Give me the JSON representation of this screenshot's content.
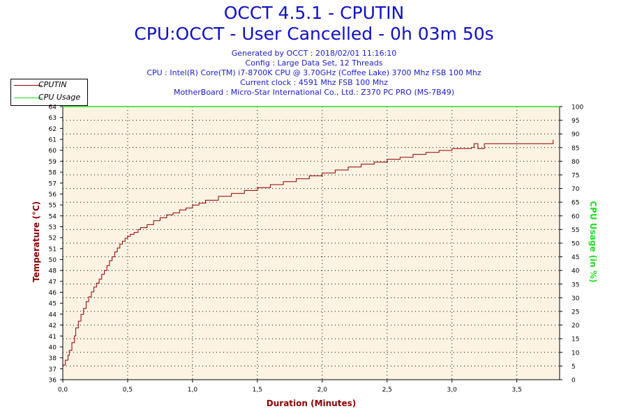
{
  "header": {
    "title": "OCCT 4.5.1 - CPUTIN",
    "subtitle": "CPU:OCCT - User Cancelled - 0h 03m 50s",
    "info_lines": [
      "Generated by OCCT : 2018/02/01 11:16:10",
      "Config : Large Data Set, 12 Threads",
      "CPU : Intel(R) Core(TM) i7-8700K CPU @ 3.70GHz (Coffee Lake) 3700 Mhz FSB 100 Mhz",
      "Current clock : 4591 Mhz FSB 100 Mhz",
      "MotherBoard : Micro-Star International Co., Ltd.: Z370 PC PRO (MS-7B49)"
    ]
  },
  "colors": {
    "title": "#1010c0",
    "cputin": "#8b0000",
    "cpu_usage": "#22dd22",
    "plot_bg": "#fdf3e3"
  },
  "chart_data": {
    "type": "line",
    "title": "OCCT 4.5.1 - CPUTIN",
    "xlabel": "Duration (Minutes)",
    "ylabel": "Temperature (°C)",
    "y2label": "CPU Usage (in %)",
    "xlim": [
      0,
      3.83
    ],
    "ylim": [
      36,
      64
    ],
    "y2lim": [
      0,
      100
    ],
    "xticks": [
      "0,0",
      "0,5",
      "1,0",
      "1,5",
      "2,0",
      "2,5",
      "3,0",
      "3,5"
    ],
    "xtick_values": [
      0,
      0.5,
      1.0,
      1.5,
      2.0,
      2.5,
      3.0,
      3.5
    ],
    "yticks": [
      "36",
      "37",
      "38",
      "40",
      "41",
      "42",
      "44",
      "45",
      "46",
      "47",
      "48",
      "50",
      "51",
      "52",
      "53",
      "54",
      "55",
      "56",
      "57",
      "58",
      "59",
      "60",
      "61",
      "62",
      "63",
      "64"
    ],
    "y2ticks": [
      "0",
      "5",
      "10",
      "15",
      "20",
      "25",
      "30",
      "35",
      "40",
      "45",
      "50",
      "55",
      "60",
      "65",
      "70",
      "75",
      "80",
      "85",
      "90",
      "95",
      "100"
    ],
    "y2tick_values": [
      0,
      5,
      10,
      15,
      20,
      25,
      30,
      35,
      40,
      45,
      50,
      55,
      60,
      65,
      70,
      75,
      80,
      85,
      90,
      95,
      100
    ],
    "grid": true,
    "legend_position": "top-left",
    "series": [
      {
        "name": "CPUTIN",
        "axis": "left",
        "x": [
          0,
          0.02,
          0.04,
          0.05,
          0.07,
          0.09,
          0.1,
          0.12,
          0.14,
          0.16,
          0.18,
          0.2,
          0.22,
          0.24,
          0.26,
          0.28,
          0.3,
          0.32,
          0.34,
          0.36,
          0.38,
          0.4,
          0.42,
          0.44,
          0.46,
          0.48,
          0.5,
          0.52,
          0.55,
          0.58,
          0.6,
          0.65,
          0.7,
          0.75,
          0.8,
          0.85,
          0.9,
          0.95,
          1.0,
          1.05,
          1.1,
          1.2,
          1.3,
          1.4,
          1.5,
          1.6,
          1.7,
          1.8,
          1.9,
          2.0,
          2.1,
          2.2,
          2.3,
          2.4,
          2.5,
          2.6,
          2.7,
          2.8,
          2.9,
          3.0,
          3.1,
          3.15,
          3.17,
          3.2,
          3.22,
          3.25,
          3.3,
          3.4,
          3.5,
          3.6,
          3.7,
          3.75,
          3.78
        ],
        "y": [
          37.5,
          38,
          38.5,
          39,
          39.8,
          40.5,
          41.3,
          42,
          42.7,
          43.3,
          44,
          44.5,
          45,
          45.5,
          45.9,
          46.3,
          46.8,
          47.2,
          47.7,
          48.2,
          48.6,
          49.1,
          49.5,
          49.9,
          50.2,
          50.5,
          50.7,
          50.9,
          51.1,
          51.4,
          51.6,
          51.9,
          52.3,
          52.6,
          52.9,
          53.1,
          53.4,
          53.6,
          53.9,
          54.1,
          54.4,
          54.8,
          55.1,
          55.4,
          55.7,
          56.0,
          56.3,
          56.6,
          56.9,
          57.2,
          57.5,
          57.8,
          58.1,
          58.3,
          58.6,
          58.8,
          59.1,
          59.3,
          59.5,
          59.7,
          59.7,
          59.8,
          60.2,
          59.7,
          59.7,
          60.2,
          60.2,
          60.2,
          60.2,
          60.2,
          60.2,
          60.2,
          60.6
        ]
      },
      {
        "name": "CPU Usage",
        "axis": "right",
        "x": [
          0,
          3.83
        ],
        "y": [
          100,
          100
        ]
      }
    ]
  }
}
